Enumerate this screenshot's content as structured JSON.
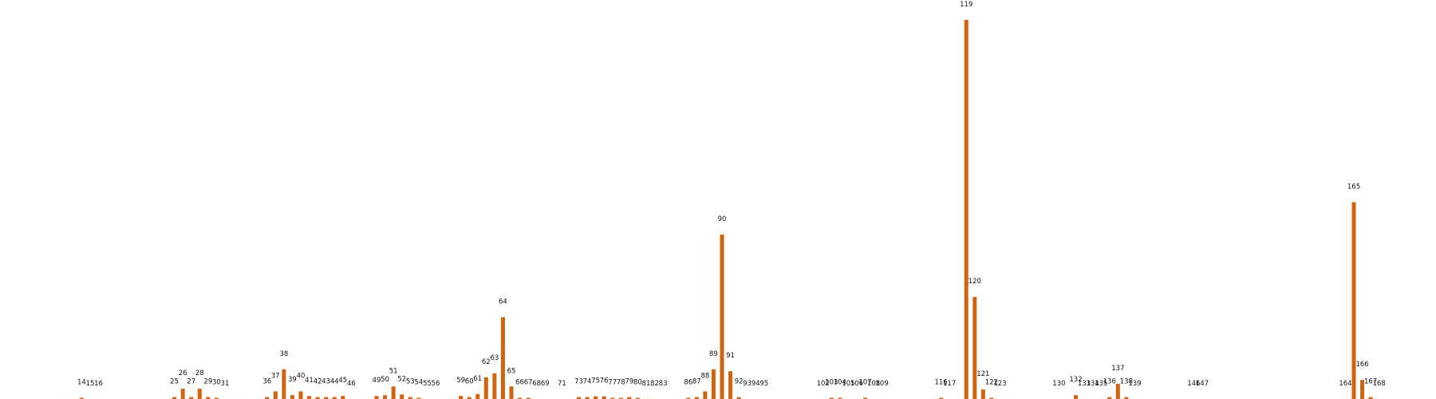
{
  "chart_data": {
    "type": "bar",
    "title": "",
    "xlabel": "",
    "ylabel": "",
    "grid": false,
    "xlim": [
      0,
      171
    ],
    "ylim": [
      0,
      1000
    ],
    "bar_color": "#d2630f",
    "x": [
      14,
      15,
      16,
      25,
      26,
      27,
      28,
      29,
      30,
      31,
      36,
      37,
      38,
      39,
      40,
      41,
      42,
      43,
      44,
      45,
      46,
      49,
      50,
      51,
      52,
      53,
      54,
      55,
      56,
      59,
      60,
      61,
      62,
      63,
      64,
      65,
      66,
      67,
      68,
      69,
      71,
      73,
      74,
      75,
      76,
      77,
      78,
      79,
      80,
      81,
      82,
      83,
      86,
      87,
      88,
      89,
      90,
      91,
      92,
      93,
      94,
      95,
      102,
      103,
      104,
      105,
      106,
      107,
      108,
      109,
      116,
      117,
      119,
      120,
      121,
      122,
      123,
      130,
      132,
      133,
      134,
      135,
      136,
      137,
      138,
      139,
      146,
      147,
      164,
      165,
      166,
      167,
      168
    ],
    "labels": [
      "14",
      "15",
      "16",
      "25",
      "26",
      "27",
      "28",
      "29",
      "30",
      "31",
      "36",
      "37",
      "38",
      "39",
      "40",
      "41",
      "42",
      "43",
      "44",
      "45",
      "46",
      "49",
      "50",
      "51",
      "52",
      "53",
      "54",
      "55",
      "56",
      "59",
      "60",
      "61",
      "62",
      "63",
      "64",
      "65",
      "66",
      "67",
      "68",
      "69",
      "71",
      "73",
      "74",
      "75",
      "76",
      "77",
      "78",
      "79",
      "80",
      "81",
      "82",
      "83",
      "86",
      "87",
      "88",
      "89",
      "90",
      "91",
      "92",
      "93",
      "94",
      "95",
      "102",
      "103",
      "104",
      "105",
      "106",
      "107",
      "108",
      "109",
      "116",
      "117",
      "119",
      "120",
      "121",
      "122",
      "123",
      "130",
      "132",
      "133",
      "134",
      "135",
      "136",
      "137",
      "138",
      "139",
      "146",
      "147",
      "164",
      "165",
      "166",
      "167",
      "168"
    ],
    "values": [
      3,
      0,
      0,
      5,
      27,
      5,
      27,
      5,
      3,
      0,
      5,
      20,
      78,
      10,
      20,
      8,
      5,
      5,
      5,
      8,
      0,
      8,
      10,
      33,
      12,
      5,
      3,
      0,
      0,
      8,
      5,
      13,
      57,
      67,
      215,
      33,
      3,
      3,
      0,
      0,
      0,
      5,
      5,
      7,
      7,
      3,
      3,
      5,
      3,
      0,
      0,
      0,
      3,
      5,
      20,
      78,
      432,
      73,
      5,
      0,
      0,
      0,
      0,
      3,
      3,
      0,
      0,
      3,
      0,
      0,
      3,
      0,
      996,
      268,
      25,
      3,
      0,
      0,
      10,
      0,
      0,
      0,
      5,
      40,
      5,
      0,
      0,
      0,
      0,
      517,
      50,
      5,
      0
    ]
  }
}
